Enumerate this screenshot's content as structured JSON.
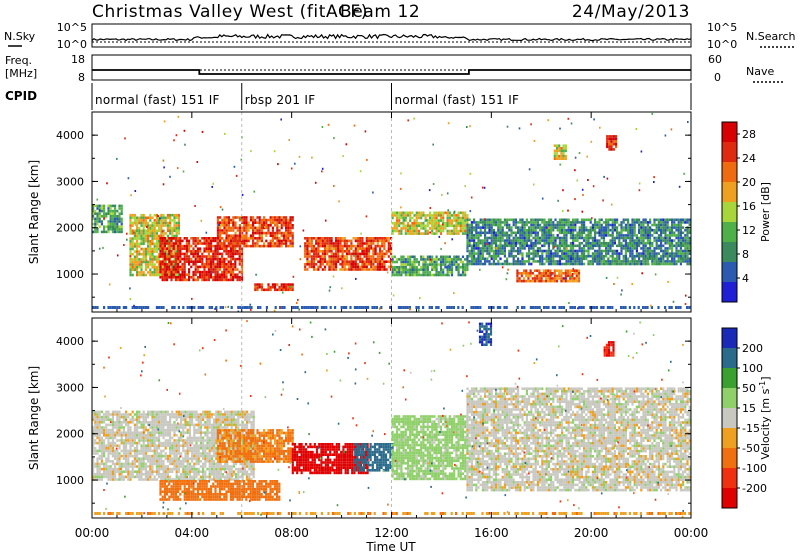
{
  "header": {
    "site": "Christmas Valley West (fitACF)",
    "beam": "Beam 12",
    "date": "24/May/2013"
  },
  "noise_panel": {
    "left_label": "N.Sky",
    "right_label": "N.Search",
    "left_ticks": [
      "10^5",
      "10^0"
    ],
    "right_ticks": [
      "10^5",
      "10^0"
    ]
  },
  "freq_panel": {
    "left_label_line1": "Freq.",
    "left_label_line2": "[MHz]",
    "right_label": "Nave",
    "left_ticks": [
      "18",
      "8"
    ],
    "right_ticks": [
      "60",
      "0"
    ]
  },
  "cpid": {
    "label": "CPID",
    "segments": [
      {
        "text": "normal (fast) 151 IF",
        "start_h": 0,
        "end_h": 6
      },
      {
        "text": "rbsp 201 IF",
        "start_h": 6,
        "end_h": 12
      },
      {
        "text": "normal (fast) 151 IF",
        "start_h": 12,
        "end_h": 24
      }
    ]
  },
  "power_panel": {
    "ylabel": "Slant Range [km]",
    "yticks": [
      "4000",
      "3000",
      "2000",
      "1000"
    ],
    "colorbar_label": "Power [dB]",
    "colorbar_ticks": [
      "28",
      "24",
      "20",
      "16",
      "12",
      "8",
      "4"
    ]
  },
  "velocity_panel": {
    "ylabel": "Slant Range [km]",
    "yticks": [
      "4000",
      "3000",
      "2000",
      "1000"
    ],
    "colorbar_label": "Velocity [m s",
    "colorbar_label_sup": "-1",
    "colorbar_label_end": "]",
    "colorbar_ticks": [
      "200",
      "100",
      "50",
      "15",
      "-15",
      "-50",
      "-100",
      "-200"
    ]
  },
  "xaxis": {
    "label": "Time UT",
    "ticks": [
      "00:00",
      "04:00",
      "08:00",
      "12:00",
      "16:00",
      "20:00",
      "00:00"
    ]
  },
  "chart_data": [
    {
      "type": "line",
      "title": "Christmas Valley West (fitACF) Beam 12 24/May/2013",
      "xlabel": "Time UT",
      "ylabel": "Freq. [MHz]",
      "series": [
        {
          "x": [
            0,
            4.3,
            4.3,
            15.1,
            15.1,
            24
          ],
          "values": [
            12,
            12,
            10.4,
            10.4,
            12,
            12
          ]
        }
      ],
      "ylim": [
        8,
        18
      ]
    },
    {
      "type": "heatmap",
      "title": "Power",
      "xlabel": "Time UT",
      "ylabel": "Slant Range [km]",
      "xlim": [
        0,
        24
      ],
      "ylim": [
        180,
        4500
      ],
      "colorbar": {
        "label": "Power [dB]",
        "range": [
          0,
          30
        ]
      },
      "regions": [
        {
          "t": [
            0.0,
            1.2
          ],
          "r": [
            1900,
            2500
          ],
          "value": 10
        },
        {
          "t": [
            1.5,
            3.5
          ],
          "r": [
            1000,
            2300
          ],
          "value": 16
        },
        {
          "t": [
            2.7,
            6.0
          ],
          "r": [
            900,
            1800
          ],
          "value": 26
        },
        {
          "t": [
            5.0,
            8.0
          ],
          "r": [
            1600,
            2250
          ],
          "value": 24
        },
        {
          "t": [
            6.5,
            8.0
          ],
          "r": [
            650,
            800
          ],
          "value": 26
        },
        {
          "t": [
            8.5,
            12.0
          ],
          "r": [
            1100,
            1800
          ],
          "value": 24
        },
        {
          "t": [
            12.0,
            15.0
          ],
          "r": [
            1850,
            2350
          ],
          "value": 16
        },
        {
          "t": [
            12.0,
            15.0
          ],
          "r": [
            1000,
            1400
          ],
          "value": 10
        },
        {
          "t": [
            17.0,
            19.5
          ],
          "r": [
            850,
            1100
          ],
          "value": 22
        },
        {
          "t": [
            18.5,
            19.0
          ],
          "r": [
            3500,
            3800
          ],
          "value": 16
        },
        {
          "t": [
            20.6,
            21.0
          ],
          "r": [
            3700,
            4000
          ],
          "value": 26
        },
        {
          "t": [
            15.0,
            24.0
          ],
          "r": [
            1200,
            2200
          ],
          "value": 8
        }
      ]
    },
    {
      "type": "heatmap",
      "title": "Velocity",
      "xlabel": "Time UT",
      "ylabel": "Slant Range [km]",
      "xlim": [
        0,
        24
      ],
      "ylim": [
        180,
        4500
      ],
      "colorbar": {
        "label": "Velocity [m s-1]",
        "range": [
          -250,
          250
        ]
      },
      "regions": [
        {
          "t": [
            0.0,
            6.5
          ],
          "r": [
            1000,
            2500
          ],
          "value": 0
        },
        {
          "t": [
            5.0,
            8.0
          ],
          "r": [
            1400,
            2100
          ],
          "value": -60
        },
        {
          "t": [
            2.7,
            7.5
          ],
          "r": [
            600,
            1000
          ],
          "value": -70
        },
        {
          "t": [
            8.0,
            11.0
          ],
          "r": [
            1150,
            1800
          ],
          "value": -220
        },
        {
          "t": [
            10.5,
            12.0
          ],
          "r": [
            1200,
            1800
          ],
          "value": 120
        },
        {
          "t": [
            12.0,
            15.0
          ],
          "r": [
            1000,
            2400
          ],
          "value": 30
        },
        {
          "t": [
            15.0,
            24.0
          ],
          "r": [
            800,
            3000
          ],
          "value": 0
        },
        {
          "t": [
            15.5,
            16.0
          ],
          "r": [
            3900,
            4400
          ],
          "value": 200
        },
        {
          "t": [
            20.5,
            20.9
          ],
          "r": [
            3700,
            4000
          ],
          "value": -200
        }
      ]
    }
  ]
}
